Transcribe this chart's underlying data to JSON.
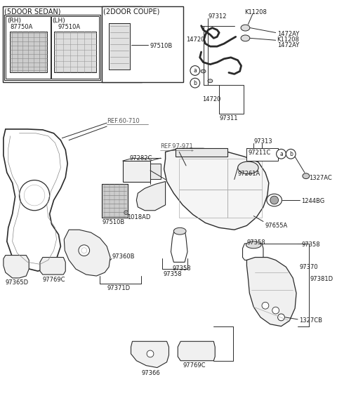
{
  "bg_color": "#ffffff",
  "line_color": "#2a2a2a",
  "text_color": "#1a1a1a",
  "ref_color": "#555555",
  "labels": {
    "sedan_header": "(5DOOR SEDAN)",
    "rh": "(RH)",
    "lh": "(LH)",
    "p87750A": "87750A",
    "p97510A": "97510A",
    "coupe_header": "(2DOOR COUPE)",
    "p97510B_top": "97510B",
    "K11208_1": "K11208",
    "p97312": "97312",
    "p14720_1": "14720",
    "p1472AY_1": "1472AY",
    "K11208_2": "K11208",
    "p1472AY_2": "1472AY",
    "p97311": "97311",
    "p14720_2": "14720",
    "a1": "a",
    "b1": "b",
    "ref60710": "REF.60-710",
    "ref97971": "REF.97-971",
    "p97282C": "97282C",
    "p1018AD": "1018AD",
    "p97510B_main": "97510B",
    "p97313": "97313",
    "p97211C": "97211C",
    "p97261A": "97261A",
    "a2": "a",
    "b2": "b",
    "p1327AC": "1327AC",
    "p1244BG": "1244BG",
    "p97655A": "97655A",
    "p97358_c": "97358",
    "p97358_r": "97358",
    "p97360B": "97360B",
    "p97371D": "97371D",
    "p97769C_l": "97769C",
    "p97365D": "97365D",
    "p97370": "97370",
    "p97381D": "97381D",
    "p1327CB": "1327CB",
    "p97769C_b": "97769C",
    "p97366": "97366"
  }
}
